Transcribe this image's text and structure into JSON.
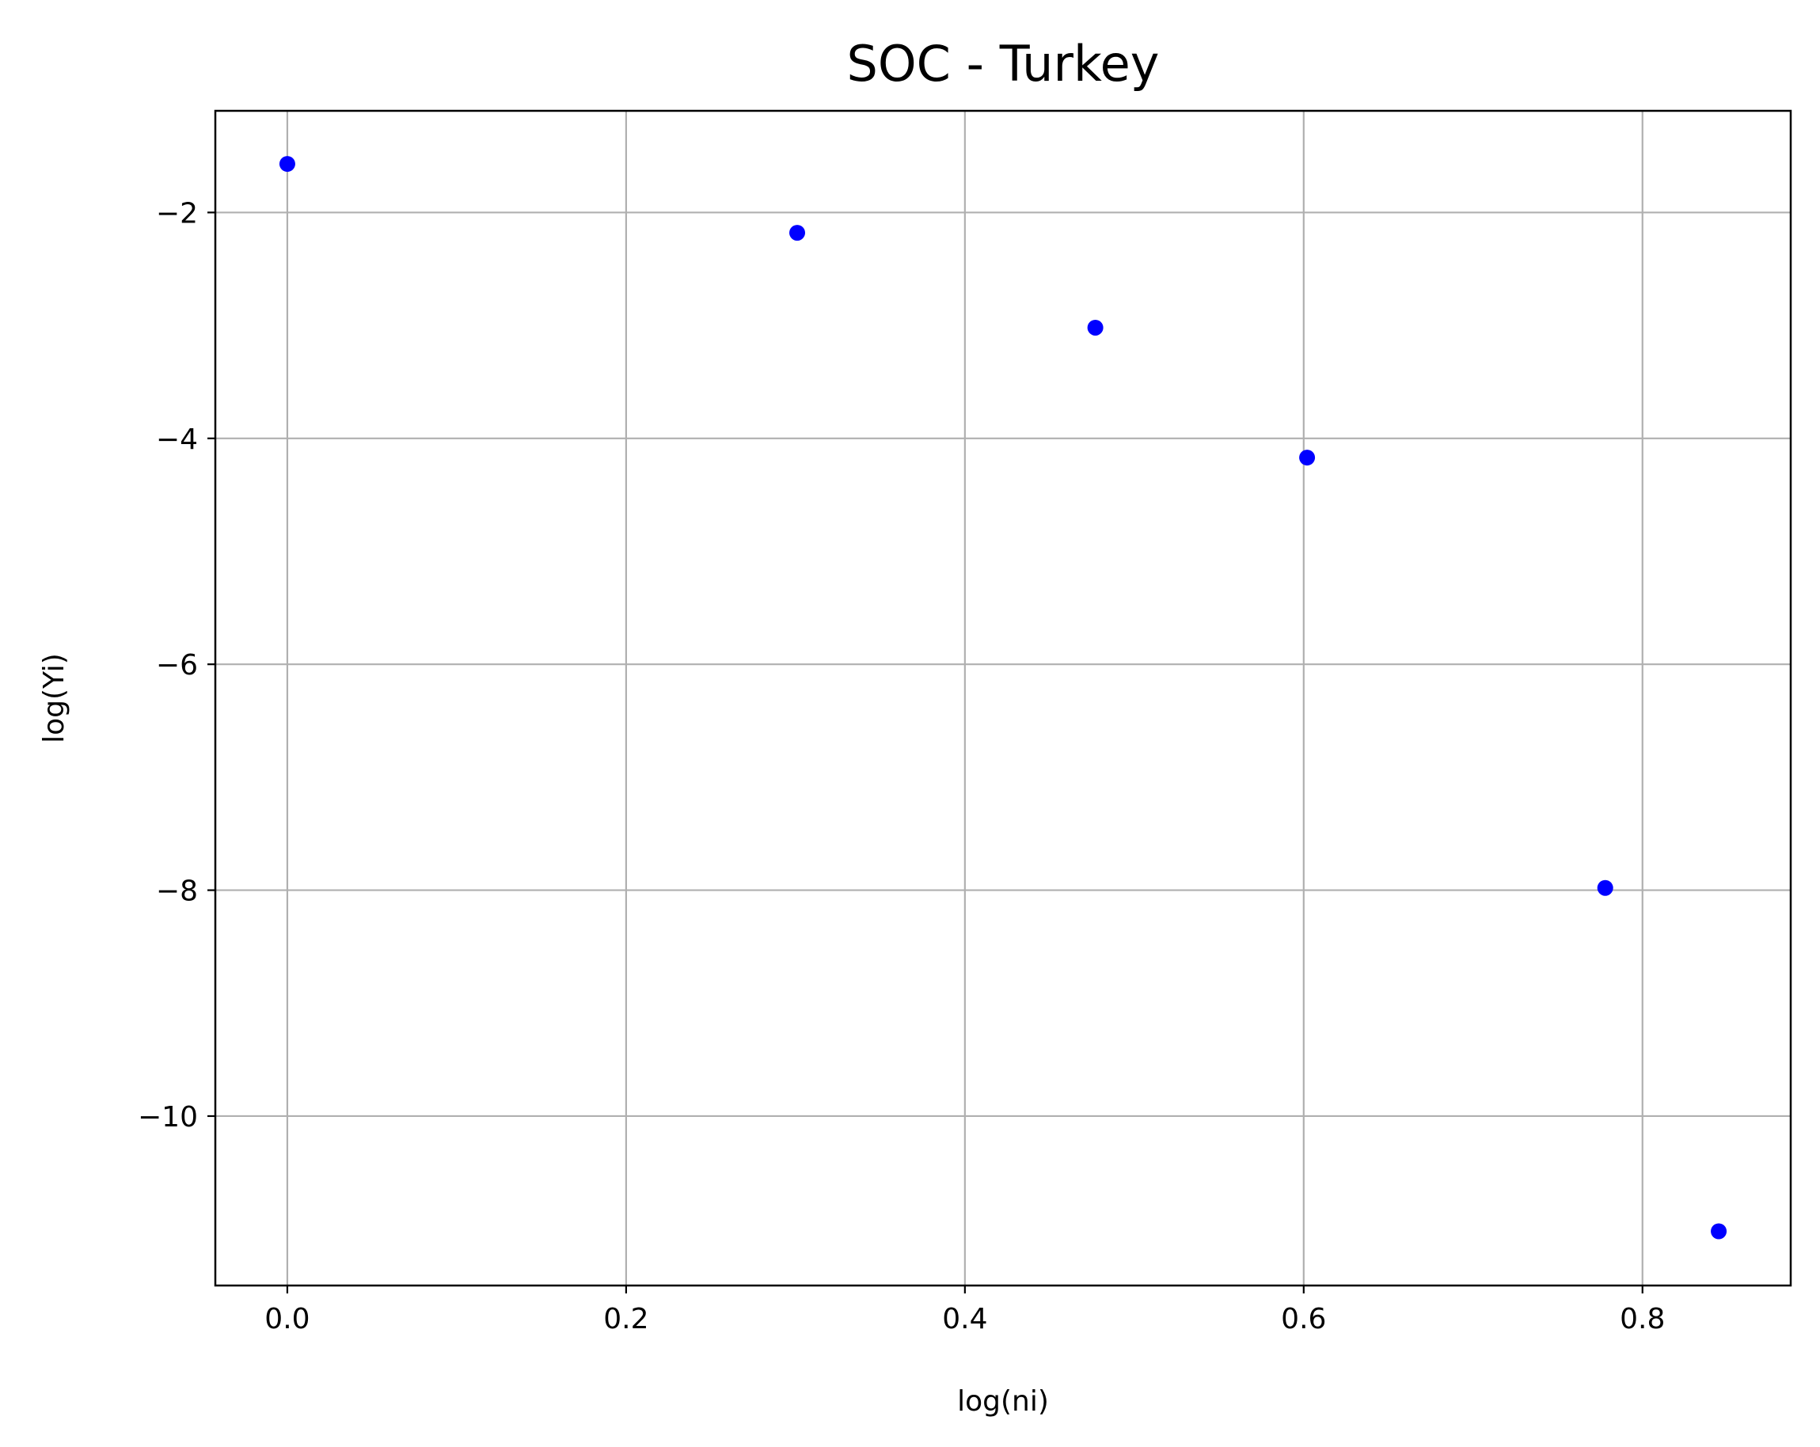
{
  "chart_data": {
    "type": "scatter",
    "title": "SOC - Turkey",
    "xlabel": "log(ni)",
    "ylabel": "log(Yi)",
    "xlim": [
      -0.0425,
      0.8875
    ],
    "ylim": [
      -11.5,
      -1.1
    ],
    "xticks": [
      0.0,
      0.2,
      0.4,
      0.6,
      0.8
    ],
    "xtick_labels": [
      "0.0",
      "0.2",
      "0.4",
      "0.6",
      "0.8"
    ],
    "yticks": [
      -2,
      -4,
      -6,
      -8,
      -10
    ],
    "ytick_labels": [
      "−2",
      "−4",
      "−6",
      "−8",
      "−10"
    ],
    "grid": true,
    "series": [
      {
        "color": "#0000ff",
        "x": [
          0.0,
          0.301,
          0.477,
          0.602,
          0.778,
          0.845
        ],
        "y": [
          -1.57,
          -2.18,
          -3.02,
          -4.17,
          -7.98,
          -11.02
        ]
      }
    ]
  }
}
